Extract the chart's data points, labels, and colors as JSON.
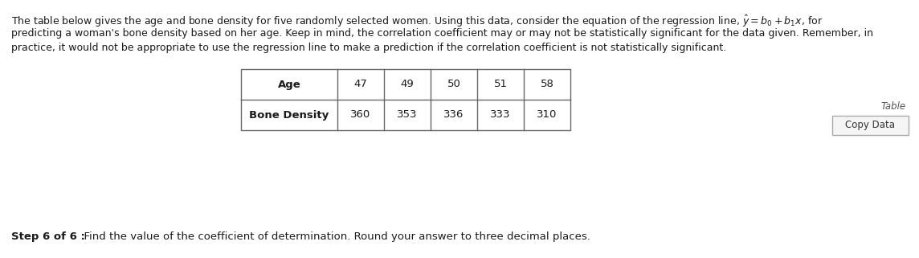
{
  "intro_line1": "The table below gives the age and bone density for five randomly selected women. Using this data, consider the equation of the regression line, $\\hat{y} = b_0 + b_1x$, for",
  "intro_line2": "predicting a woman's bone density based on her age. Keep in mind, the correlation coefficient may or may not be statistically significant for the data given. Remember, in",
  "intro_line3": "practice, it would not be appropriate to use the regression line to make a prediction if the correlation coefficient is not statistically significant.",
  "row1_label": "Age",
  "row1_values": [
    "47",
    "49",
    "50",
    "51",
    "58"
  ],
  "row2_label": "Bone Density",
  "row2_values": [
    "360",
    "353",
    "336",
    "333",
    "310"
  ],
  "table_link": "Table",
  "copy_button": "Copy Data",
  "step_bold": "Step 6 of 6 :",
  "step_normal": "  Find the value of the coefficient of determination. Round your answer to three decimal places.",
  "bg_color": "#ffffff",
  "text_color": "#1a1a1a",
  "border_color": "#666666",
  "font_size_body": 9.0,
  "font_size_table": 9.5,
  "font_size_step": 9.5
}
